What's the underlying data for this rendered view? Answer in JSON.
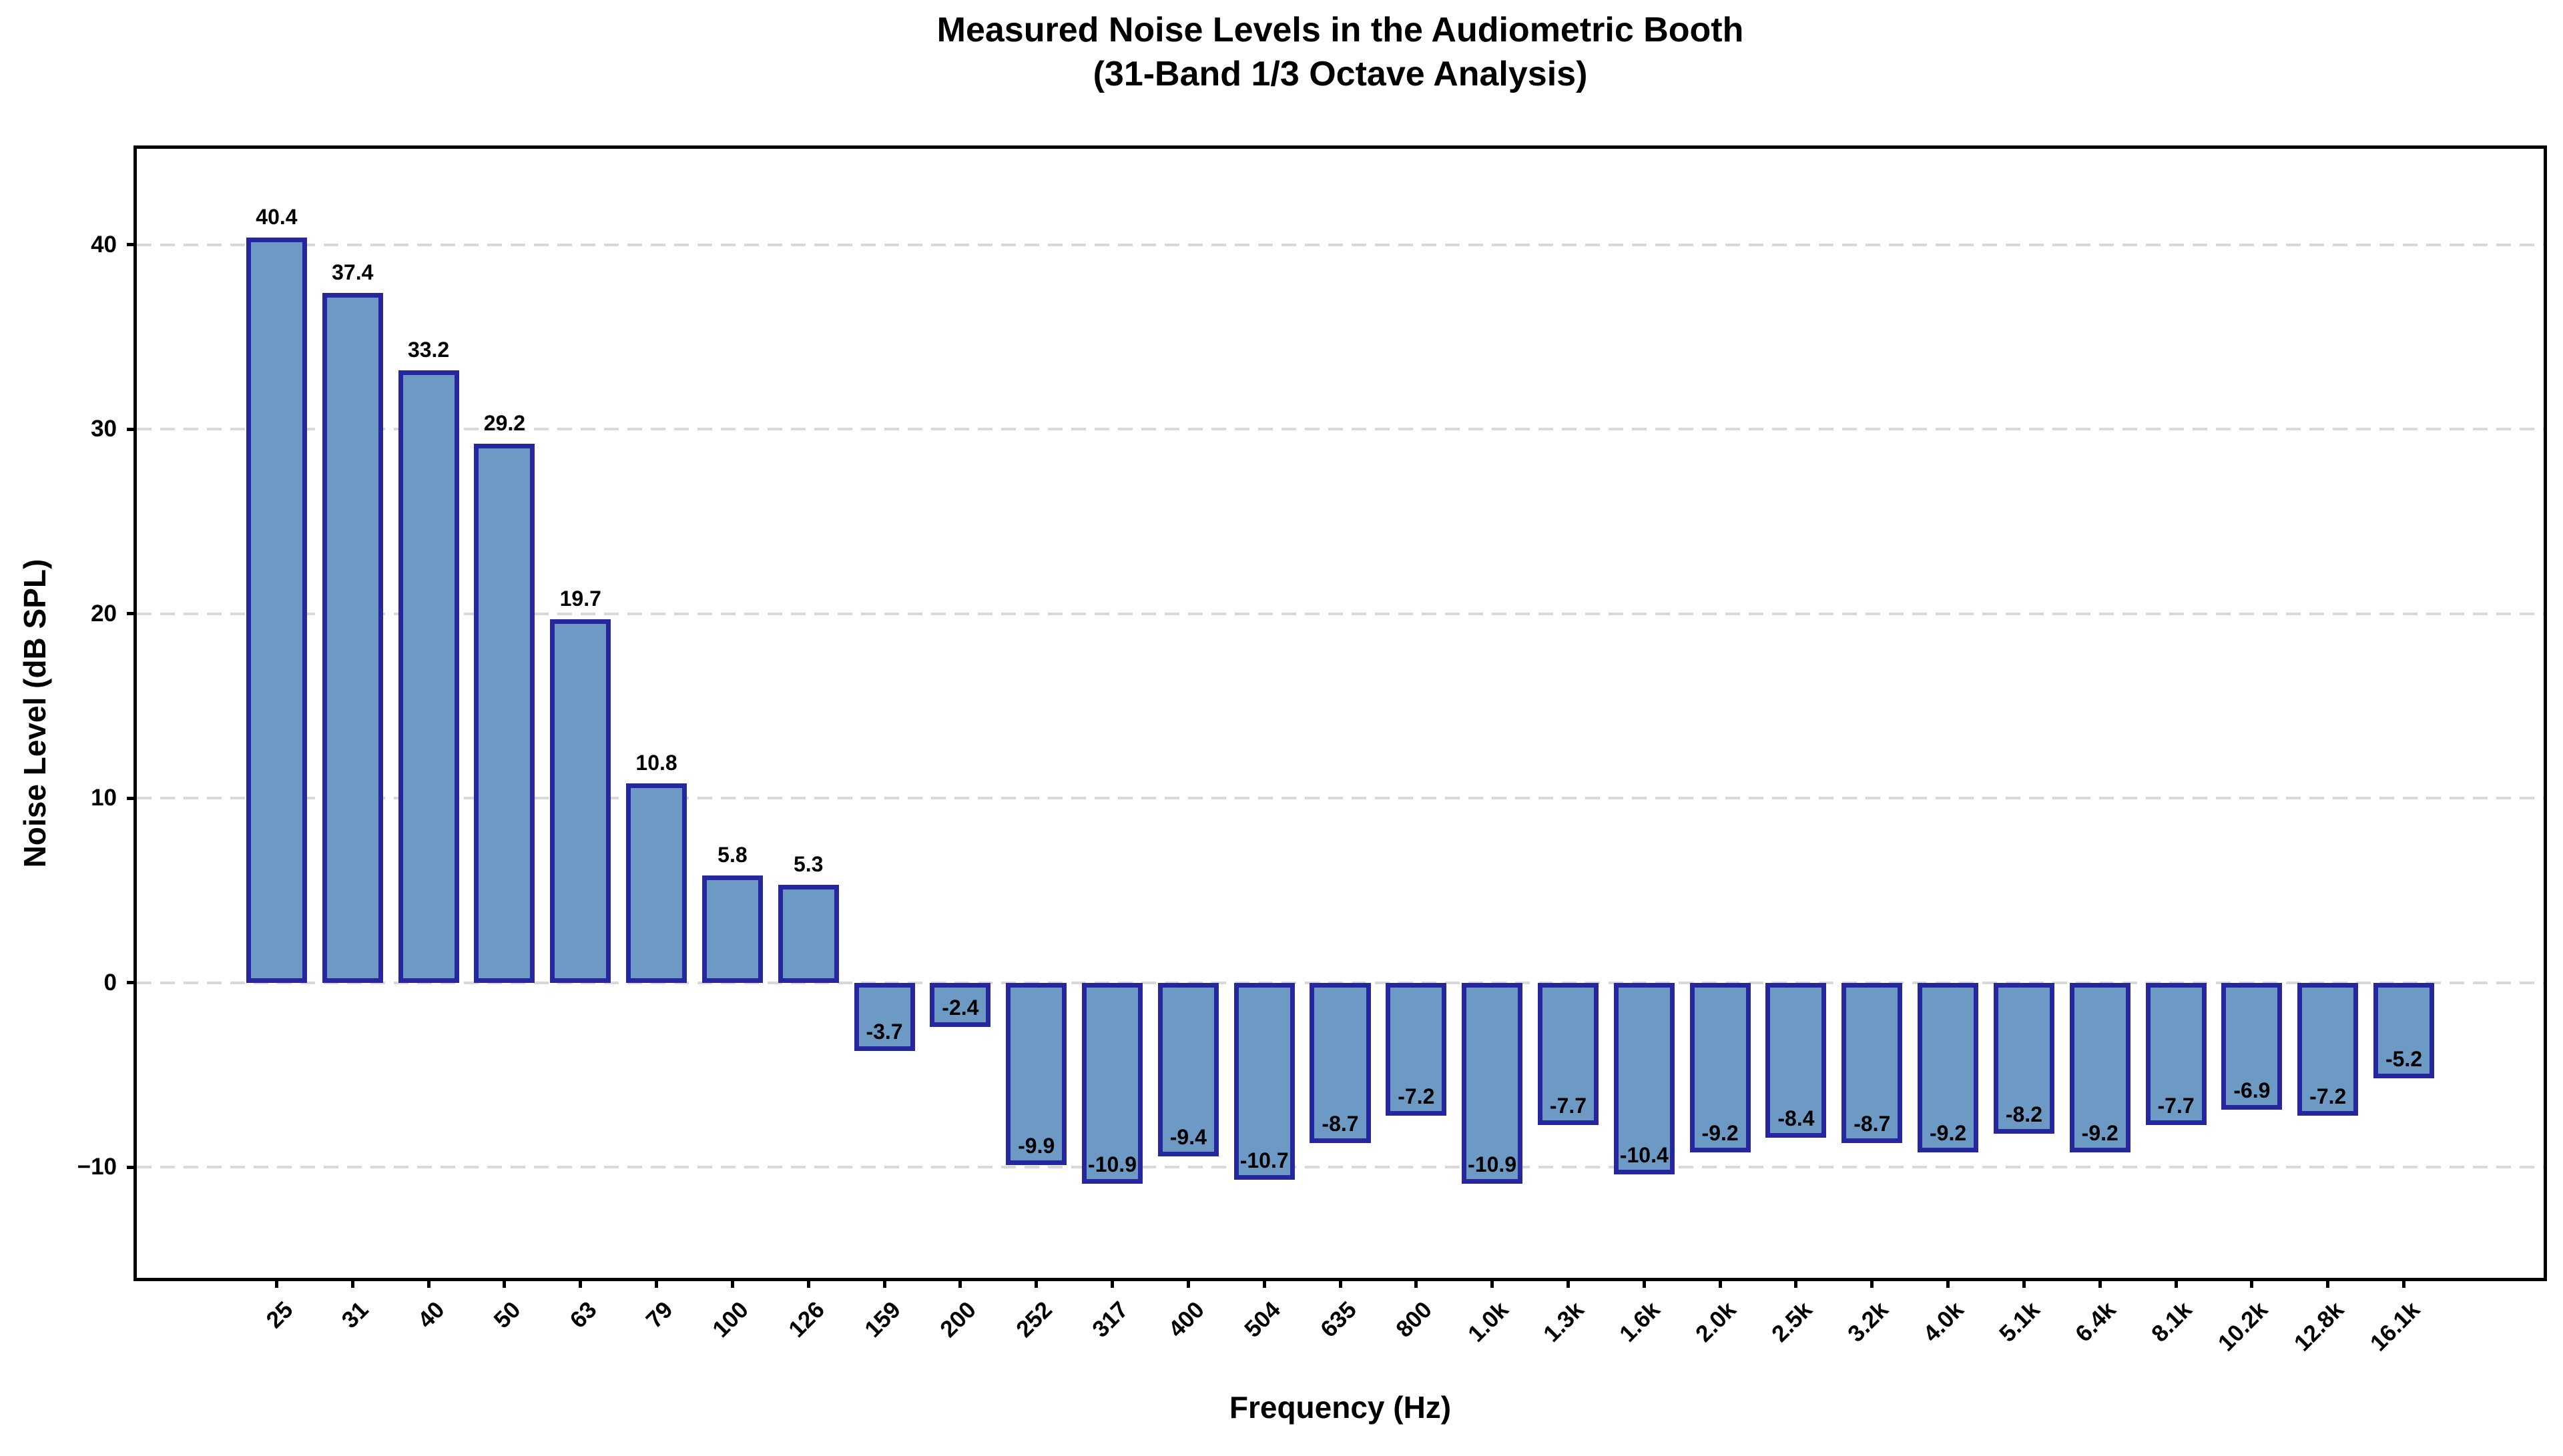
{
  "chart_data": {
    "type": "bar",
    "title": "Measured Noise Levels in the Audiometric Booth (31-Band 1/3 Octave Analysis)",
    "title_line1": "Measured Noise Levels in the Audiometric Booth",
    "title_line2": "(31-Band 1/3 Octave Analysis)",
    "xlabel": "Frequency (Hz)",
    "ylabel": "Noise Level (dB SPL)",
    "categories": [
      "25",
      "31",
      "40",
      "50",
      "63",
      "79",
      "100",
      "126",
      "159",
      "200",
      "252",
      "317",
      "400",
      "504",
      "635",
      "800",
      "1.0k",
      "1.3k",
      "1.6k",
      "2.0k",
      "2.5k",
      "3.2k",
      "4.0k",
      "5.1k",
      "6.4k",
      "8.1k",
      "10.2k",
      "12.8k",
      "16.1k"
    ],
    "values": [
      40.4,
      37.4,
      33.2,
      29.2,
      19.7,
      10.8,
      5.8,
      5.3,
      -3.7,
      -2.4,
      -9.9,
      -10.9,
      -9.4,
      -10.7,
      -8.7,
      -7.2,
      -10.9,
      -7.7,
      -10.4,
      -9.2,
      -8.4,
      -8.7,
      -9.2,
      -8.2,
      -9.2,
      -7.7,
      -6.9,
      -7.2,
      -5.2
    ],
    "value_labels": [
      "40.4",
      "37.4",
      "33.2",
      "29.2",
      "19.7",
      "10.8",
      "5.8",
      "5.3",
      "-3.7",
      "-2.4",
      "-9.9",
      "-10.9",
      "-9.4",
      "-10.7",
      "-8.7",
      "-7.2",
      "-10.9",
      "-7.7",
      "-10.4",
      "-9.2",
      "-8.4",
      "-8.7",
      "-9.2",
      "-8.2",
      "-9.2",
      "-7.7",
      "-6.9",
      "-7.2",
      "-5.2"
    ],
    "yticks": [
      {
        "value": 40,
        "label": "40"
      },
      {
        "value": 30,
        "label": "30"
      },
      {
        "value": 20,
        "label": "20"
      },
      {
        "value": 10,
        "label": "10"
      },
      {
        "value": 0,
        "label": "0"
      },
      {
        "value": -10,
        "label": "−10"
      }
    ],
    "ylim": [
      -16.0,
      45.2
    ],
    "xlim": [
      -1.84,
      29.84
    ],
    "bar_width": 0.8,
    "grid": "horizontal-dashed",
    "legend": "none",
    "colors": {
      "bar_fill": "#6c9ac4",
      "bar_edge": "#26269e",
      "grid": "#d8d8d8",
      "frame": "#000000",
      "background": "#ffffff",
      "text": "#000000"
    }
  }
}
